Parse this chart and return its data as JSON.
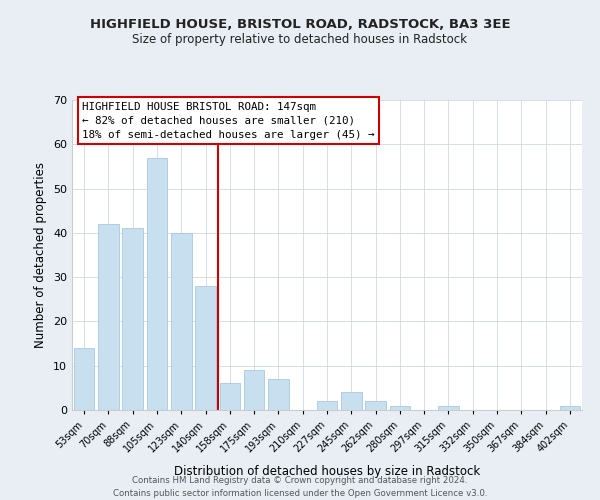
{
  "title": "HIGHFIELD HOUSE, BRISTOL ROAD, RADSTOCK, BA3 3EE",
  "subtitle": "Size of property relative to detached houses in Radstock",
  "xlabel": "Distribution of detached houses by size in Radstock",
  "ylabel": "Number of detached properties",
  "bar_color": "#c8dff0",
  "bar_edge_color": "#a8c8e0",
  "background_color": "#e8eef4",
  "plot_bg_color": "#ffffff",
  "categories": [
    "53sqm",
    "70sqm",
    "88sqm",
    "105sqm",
    "123sqm",
    "140sqm",
    "158sqm",
    "175sqm",
    "193sqm",
    "210sqm",
    "227sqm",
    "245sqm",
    "262sqm",
    "280sqm",
    "297sqm",
    "315sqm",
    "332sqm",
    "350sqm",
    "367sqm",
    "384sqm",
    "402sqm"
  ],
  "values": [
    14,
    42,
    41,
    57,
    40,
    28,
    6,
    9,
    7,
    0,
    2,
    4,
    2,
    1,
    0,
    1,
    0,
    0,
    0,
    0,
    1
  ],
  "ylim": [
    0,
    70
  ],
  "yticks": [
    0,
    10,
    20,
    30,
    40,
    50,
    60,
    70
  ],
  "vline_color": "#cc0000",
  "annotation_line1": "HIGHFIELD HOUSE BRISTOL ROAD: 147sqm",
  "annotation_line2": "← 82% of detached houses are smaller (210)",
  "annotation_line3": "18% of semi-detached houses are larger (45) →",
  "footer_line1": "Contains HM Land Registry data © Crown copyright and database right 2024.",
  "footer_line2": "Contains public sector information licensed under the Open Government Licence v3.0."
}
